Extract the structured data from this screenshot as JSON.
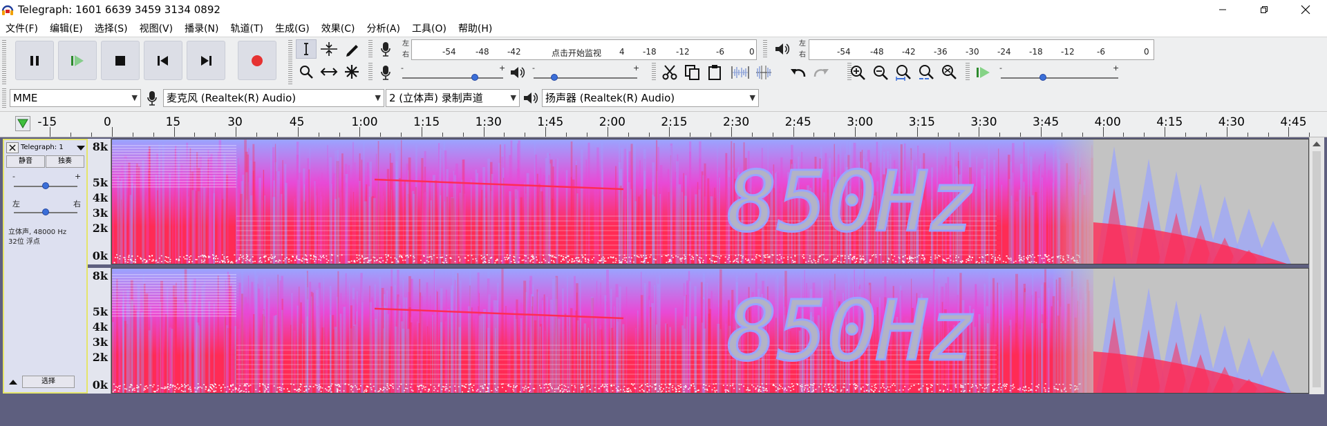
{
  "window": {
    "title": "Telegraph:  1601 6639 3459 3134 0892",
    "icon": "audacity-headphones-icon",
    "controls": [
      "minimize-icon",
      "maximize-icon",
      "close-icon"
    ]
  },
  "menu": [
    "文件(F)",
    "编辑(E)",
    "选择(S)",
    "视图(V)",
    "播录(N)",
    "轨道(T)",
    "生成(G)",
    "效果(C)",
    "分析(A)",
    "工具(O)",
    "帮助(H)"
  ],
  "transport": {
    "pause": "pause-icon",
    "play": "play-icon",
    "stop": "stop-icon",
    "skip_start": "skip-start-icon",
    "skip_end": "skip-end-icon",
    "record": "record-icon"
  },
  "tools": [
    "select-tool-icon",
    "envelope-tool-icon",
    "draw-tool-icon",
    "zoom-tool-icon",
    "time-shift-tool-icon",
    "multi-tool-icon"
  ],
  "record_meter": {
    "left_label": "左",
    "right_label": "右",
    "ticks": [
      "-54",
      "-48",
      "-42",
      "4",
      "-18",
      "-12",
      "-6",
      "0"
    ],
    "hint": "点击开始监视"
  },
  "playback_meter": {
    "left_label": "左",
    "right_label": "右",
    "ticks": [
      "-54",
      "-48",
      "-42",
      "-36",
      "-30",
      "-24",
      "-18",
      "-12",
      "-6",
      "0"
    ]
  },
  "mixer": {
    "record_volume": {
      "minus": "-",
      "plus": "+",
      "level": 0.72
    },
    "playback_volume": {
      "minus": "-",
      "plus": "+",
      "level": 0.2
    }
  },
  "play_at_speed": {
    "minus": "-",
    "plus": "+",
    "level": 0.36
  },
  "devices": {
    "host": "MME",
    "input": "麦克风 (Realtek(R) Audio)",
    "channels": "2 (立体声) 录制声道",
    "output": "扬声器 (Realtek(R) Audio)"
  },
  "timeline": {
    "labels": [
      "-15",
      "0",
      "15",
      "30",
      "45",
      "1:00",
      "1:15",
      "1:30",
      "1:45",
      "2:00",
      "2:15",
      "2:30",
      "2:45",
      "3:00",
      "3:15",
      "3:30",
      "3:45",
      "4:00",
      "4:15",
      "4:30",
      "4:45"
    ]
  },
  "track": {
    "name": "Telegraph: 1",
    "mute": "静音",
    "solo": "独奏",
    "gain": {
      "minus": "-",
      "plus": "+",
      "level": 0.5
    },
    "pan": {
      "left": "左",
      "right": "右",
      "level": 0.5
    },
    "info_line1": "立体声, 48000 Hz",
    "info_line2": "32位 浮点",
    "select": "选择"
  },
  "freq_labels": [
    "8k",
    "5k",
    "4k",
    "3k",
    "2k",
    "0k"
  ],
  "spectrogram": {
    "hidden_text": "850Hz",
    "colors": {
      "loud": "#ff2b55",
      "mid": "#e84ad6",
      "quiet": "#9aa4ff",
      "silence": "#c3c3c3",
      "text": "#b3b3c6"
    }
  },
  "colors": {
    "background": "#5e5f7f",
    "toolbar": "#eeeff0",
    "record": "#e63232",
    "play": "#3fbf3f",
    "accent": "#3b6fd8",
    "track_border": "#e5e56a"
  }
}
